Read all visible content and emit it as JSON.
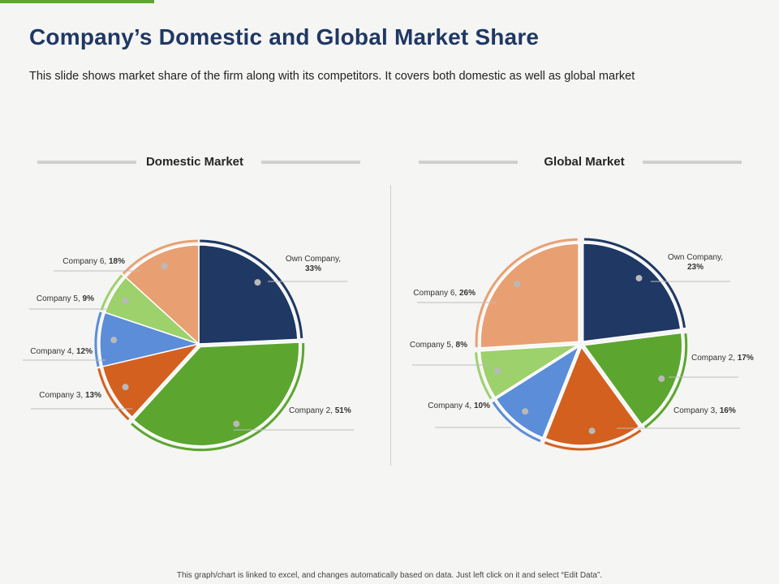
{
  "slide": {
    "title": "Company’s Domestic and Global Market Share",
    "subtitle": "This slide shows market share of the firm along with its competitors. It covers both domestic as well as global market",
    "footer": "This graph/chart is linked to excel, and changes automatically based on data. Just left click on it and select “Edit Data”."
  },
  "chart_data": [
    {
      "type": "pie",
      "title": "Domestic Market",
      "legend": "none",
      "slices": [
        {
          "label": "Own Company,",
          "value": 33,
          "display": "33%",
          "color": "#1f3864"
        },
        {
          "label": "Company 2,",
          "value": 51,
          "display": "51%",
          "color": "#5ca630"
        },
        {
          "label": "Company 3,",
          "value": 13,
          "display": "13%",
          "color": "#d4601f"
        },
        {
          "label": "Company 4,",
          "value": 12,
          "display": "12%",
          "color": "#5b8dd9"
        },
        {
          "label": "Company 5,",
          "value": 9,
          "display": "9%",
          "color": "#9dd16c"
        },
        {
          "label": "Company 6,",
          "value": 18,
          "display": "18%",
          "color": "#e8a072"
        }
      ]
    },
    {
      "type": "pie",
      "title": "Global Market",
      "legend": "none",
      "slices": [
        {
          "label": "Own Company,",
          "value": 23,
          "display": "23%",
          "color": "#1f3864"
        },
        {
          "label": "Company 2,",
          "value": 17,
          "display": "17%",
          "color": "#5ca630"
        },
        {
          "label": "Company 3,",
          "value": 16,
          "display": "16%",
          "color": "#d4601f"
        },
        {
          "label": "Company 4,",
          "value": 10,
          "display": "10%",
          "color": "#5b8dd9"
        },
        {
          "label": "Company 5,",
          "value": 8,
          "display": "8%",
          "color": "#9dd16c"
        },
        {
          "label": "Company 6,",
          "value": 26,
          "display": "26%",
          "color": "#e8a072"
        }
      ]
    }
  ]
}
